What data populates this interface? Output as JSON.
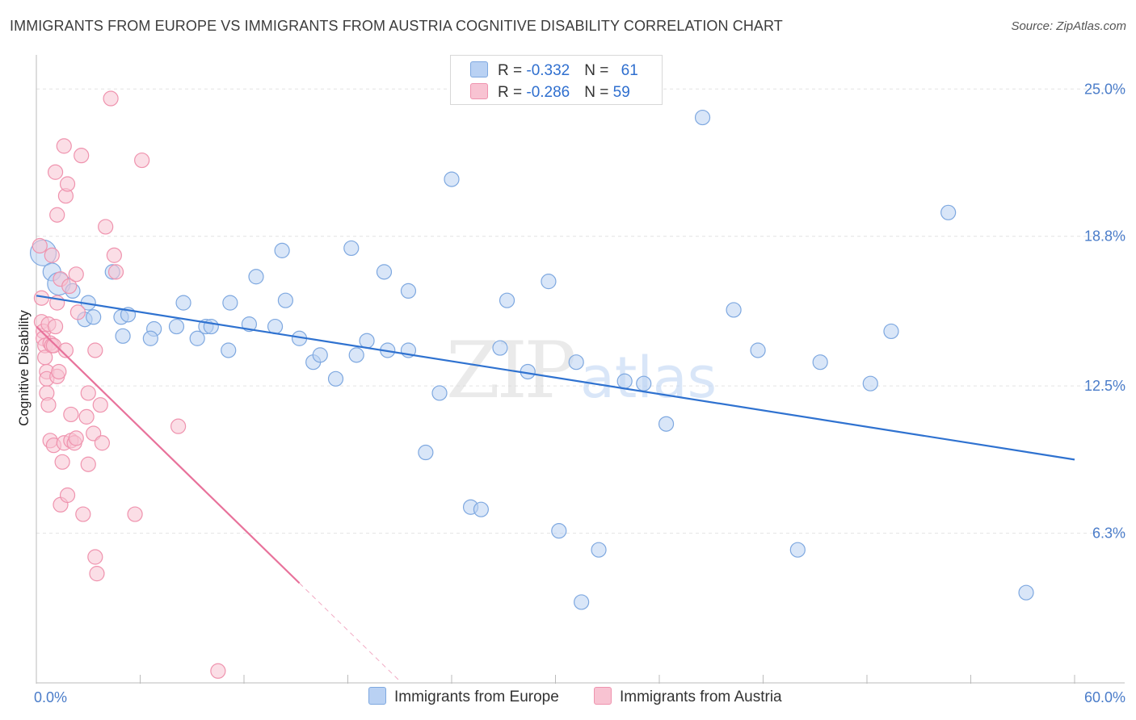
{
  "title": "IMMIGRANTS FROM EUROPE VS IMMIGRANTS FROM AUSTRIA COGNITIVE DISABILITY CORRELATION CHART",
  "source": "Source: ZipAtlas.com",
  "watermark": {
    "zip": "ZIP",
    "atlas": "atlas"
  },
  "colors": {
    "europe_fill": "#b9d1f3",
    "europe_stroke": "#7ea8e0",
    "europe_line": "#2f72d0",
    "austria_fill": "#f8c3d2",
    "austria_stroke": "#ef93ae",
    "austria_line": "#e8729b",
    "grid": "#e3e3e3",
    "tick_label": "#4a7cc9"
  },
  "legend": {
    "europe": {
      "r_label": "R = ",
      "r_value": "-0.332",
      "n_label": "N = ",
      "n_value": "61"
    },
    "austria": {
      "r_label": "R = ",
      "r_value": "-0.286",
      "n_label": "N = ",
      "n_value": "59"
    }
  },
  "chart_data": {
    "type": "scatter",
    "xlabel": "",
    "ylabel": "Cognitive Disability",
    "xlim": [
      0,
      60
    ],
    "ylim": [
      0,
      26.3
    ],
    "x_tick_labels": [
      "0.0%",
      "60.0%"
    ],
    "y_ticks": [
      6.3,
      12.5,
      18.8,
      25.0
    ],
    "y_tick_labels": [
      "6.3%",
      "12.5%",
      "18.8%",
      "25.0%"
    ],
    "grid": true,
    "legend_position": "bottom-center",
    "series": [
      {
        "name": "Immigrants from Europe",
        "key": "europe",
        "trend": {
          "x0": 0,
          "y0": 16.3,
          "x1": 60,
          "y1": 9.4
        },
        "points": [
          [
            0.4,
            18.1,
            16
          ],
          [
            0.9,
            17.3,
            11
          ],
          [
            1.3,
            16.8,
            14
          ],
          [
            2.1,
            16.5,
            9
          ],
          [
            2.8,
            15.3,
            9
          ],
          [
            3.3,
            15.4,
            9
          ],
          [
            3.0,
            16.0,
            9
          ],
          [
            4.4,
            17.3,
            9
          ],
          [
            4.9,
            15.4,
            9
          ],
          [
            5.0,
            14.6,
            9
          ],
          [
            5.3,
            15.5,
            9
          ],
          [
            6.8,
            14.9,
            9
          ],
          [
            6.6,
            14.5,
            9
          ],
          [
            8.1,
            15.0,
            9
          ],
          [
            8.5,
            16.0,
            9
          ],
          [
            9.3,
            14.5,
            9
          ],
          [
            9.8,
            15.0,
            9
          ],
          [
            10.1,
            15.0,
            9
          ],
          [
            11.1,
            14.0,
            9
          ],
          [
            11.2,
            16.0,
            9
          ],
          [
            12.3,
            15.1,
            9
          ],
          [
            12.7,
            17.1,
            9
          ],
          [
            13.8,
            15.0,
            9
          ],
          [
            14.2,
            18.2,
            9
          ],
          [
            14.4,
            16.1,
            9
          ],
          [
            15.2,
            14.5,
            9
          ],
          [
            16.0,
            13.5,
            9
          ],
          [
            16.4,
            13.8,
            9
          ],
          [
            17.3,
            12.8,
            9
          ],
          [
            18.2,
            18.3,
            9
          ],
          [
            18.5,
            13.8,
            9
          ],
          [
            19.1,
            14.4,
            9
          ],
          [
            20.1,
            17.3,
            9
          ],
          [
            20.3,
            14.0,
            9
          ],
          [
            21.5,
            16.5,
            9
          ],
          [
            21.5,
            14.0,
            9
          ],
          [
            22.5,
            9.7,
            9
          ],
          [
            23.3,
            12.2,
            9
          ],
          [
            24.0,
            21.2,
            9
          ],
          [
            25.1,
            7.4,
            9
          ],
          [
            25.7,
            7.3,
            9
          ],
          [
            26.8,
            14.1,
            9
          ],
          [
            27.2,
            16.1,
            9
          ],
          [
            28.4,
            13.1,
            9
          ],
          [
            29.6,
            16.9,
            9
          ],
          [
            30.2,
            6.4,
            9
          ],
          [
            31.2,
            13.5,
            9
          ],
          [
            31.5,
            3.4,
            9
          ],
          [
            32.5,
            5.6,
            9
          ],
          [
            34.0,
            12.7,
            9
          ],
          [
            35.1,
            12.6,
            9
          ],
          [
            36.4,
            10.9,
            9
          ],
          [
            38.5,
            23.8,
            9
          ],
          [
            40.3,
            15.7,
            9
          ],
          [
            41.7,
            14.0,
            9
          ],
          [
            44.0,
            5.6,
            9
          ],
          [
            45.3,
            13.5,
            9
          ],
          [
            49.4,
            14.8,
            9
          ],
          [
            52.7,
            19.8,
            9
          ],
          [
            57.2,
            3.8,
            9
          ],
          [
            48.2,
            12.6,
            9
          ]
        ]
      },
      {
        "name": "Immigrants from Austria",
        "key": "austria",
        "trend": {
          "x0": 0,
          "y0": 15.0,
          "x1": 15.2,
          "y1": 4.2,
          "dash_x1": 21.0
        },
        "points": [
          [
            0.2,
            18.4,
            9
          ],
          [
            0.3,
            16.2,
            9
          ],
          [
            0.3,
            15.2,
            9
          ],
          [
            0.4,
            14.8,
            9
          ],
          [
            0.4,
            14.5,
            9
          ],
          [
            0.5,
            14.2,
            9
          ],
          [
            0.5,
            13.7,
            9
          ],
          [
            0.6,
            13.1,
            9
          ],
          [
            0.6,
            12.8,
            9
          ],
          [
            0.6,
            12.2,
            9
          ],
          [
            0.7,
            15.1,
            9
          ],
          [
            0.7,
            11.7,
            9
          ],
          [
            0.8,
            14.3,
            9
          ],
          [
            0.8,
            10.2,
            9
          ],
          [
            0.9,
            18.0,
            9
          ],
          [
            0.9,
            14.2,
            9
          ],
          [
            1.0,
            14.2,
            9
          ],
          [
            1.0,
            10.0,
            9
          ],
          [
            1.1,
            21.5,
            9
          ],
          [
            1.2,
            19.7,
            9
          ],
          [
            1.2,
            16.0,
            9
          ],
          [
            1.2,
            12.9,
            9
          ],
          [
            1.3,
            13.1,
            9
          ],
          [
            1.4,
            7.5,
            9
          ],
          [
            1.4,
            17.0,
            9
          ],
          [
            1.5,
            9.3,
            9
          ],
          [
            1.6,
            22.6,
            9
          ],
          [
            1.6,
            10.1,
            9
          ],
          [
            1.7,
            20.5,
            9
          ],
          [
            1.7,
            14.0,
            9
          ],
          [
            1.8,
            21.0,
            9
          ],
          [
            1.8,
            7.9,
            9
          ],
          [
            1.9,
            16.7,
            9
          ],
          [
            2.0,
            10.2,
            9
          ],
          [
            2.0,
            11.3,
            9
          ],
          [
            2.2,
            10.1,
            9
          ],
          [
            2.3,
            17.2,
            9
          ],
          [
            2.3,
            10.3,
            9
          ],
          [
            2.4,
            15.6,
            9
          ],
          [
            2.6,
            22.2,
            9
          ],
          [
            2.7,
            7.1,
            9
          ],
          [
            2.9,
            11.2,
            9
          ],
          [
            3.0,
            12.2,
            9
          ],
          [
            3.0,
            9.2,
            9
          ],
          [
            3.3,
            10.5,
            9
          ],
          [
            3.4,
            14.0,
            9
          ],
          [
            3.4,
            5.3,
            9
          ],
          [
            3.5,
            4.6,
            9
          ],
          [
            3.7,
            11.7,
            9
          ],
          [
            3.8,
            10.1,
            9
          ],
          [
            4.0,
            19.2,
            9
          ],
          [
            4.3,
            24.6,
            9
          ],
          [
            4.5,
            18.0,
            9
          ],
          [
            4.6,
            17.3,
            9
          ],
          [
            5.7,
            7.1,
            9
          ],
          [
            6.1,
            22.0,
            9
          ],
          [
            8.2,
            10.8,
            9
          ],
          [
            10.5,
            0.5,
            9
          ],
          [
            1.1,
            15.0,
            9
          ]
        ]
      }
    ]
  }
}
